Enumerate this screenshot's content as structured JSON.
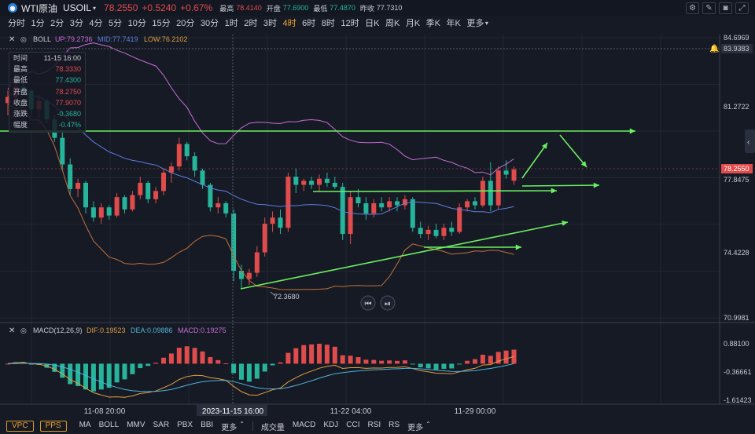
{
  "header": {
    "symbol_name": "WTI原油",
    "ticker": "USOIL",
    "price": "78.2550",
    "change": "+0.5240",
    "change_pct": "+0.67%",
    "stats": [
      {
        "label": "最高",
        "value": "78.4140"
      },
      {
        "label": "开盘",
        "value": "77.6900"
      },
      {
        "label": "最低",
        "value": "77.4870"
      },
      {
        "label": "昨收",
        "value": "77.7310"
      }
    ],
    "tools": [
      "settings-icon",
      "pencil-icon",
      "camera-icon",
      "fullscreen-icon"
    ]
  },
  "intervals": [
    "分时",
    "1分",
    "2分",
    "3分",
    "4分",
    "5分",
    "10分",
    "15分",
    "20分",
    "30分",
    "1时",
    "2时",
    "3时",
    "4时",
    "6时",
    "8时",
    "12时",
    "日K",
    "周K",
    "月K",
    "季K",
    "年K",
    "更多"
  ],
  "active_interval": "4时",
  "boll": {
    "label": "BOLL",
    "up": "UP:79.2736",
    "mid": "MID:77.7419",
    "low": "LOW:76.2102"
  },
  "tooltip": [
    {
      "label": "时间",
      "value": "11-15 16:00",
      "color": "normal"
    },
    {
      "label": "最高",
      "value": "78.3330",
      "color": "red"
    },
    {
      "label": "最低",
      "value": "77.4300",
      "color": "green"
    },
    {
      "label": "开盘",
      "value": "78.2750",
      "color": "red"
    },
    {
      "label": "收盘",
      "value": "77.9070",
      "color": "red"
    },
    {
      "label": "涨跌",
      "value": "-0.3680",
      "color": "green"
    },
    {
      "label": "幅度",
      "value": "-0.47%",
      "color": "green"
    }
  ],
  "price_axis": [
    "84.6969",
    "83.9383",
    "81.2722",
    "78.2550",
    "77.8475",
    "74.4228",
    "70.9981"
  ],
  "min_label": "72.3680",
  "macd": {
    "label": "MACD(12,26,9)",
    "dif": "DIF:0.19523",
    "dea": "DEA:0.09886",
    "macd": "MACD:0.19275"
  },
  "macd_axis": [
    "0.88100",
    "-0.36661",
    "-1.61423"
  ],
  "time_axis": [
    "11-08 20:00",
    "2023-11-15 16:00",
    "11-22 04:00",
    "11-29 00:00"
  ],
  "bottom": {
    "buttons": [
      "VPC",
      "PPS"
    ],
    "main_indicators": [
      "MA",
      "BOLL",
      "MMV",
      "SAR",
      "PBX",
      "BBI",
      "更多"
    ],
    "sub_indicators": [
      "成交量",
      "MACD",
      "KDJ",
      "CCI",
      "RSI",
      "RS",
      "更多"
    ]
  },
  "colors": {
    "up": "#e04c4c",
    "down": "#26b59b",
    "boll_up": "#c86dd7",
    "boll_mid": "#5f7de0",
    "boll_low": "#c1723a",
    "trend_line": "#6bf060",
    "active": "#f0a030",
    "background": "#161a25"
  },
  "candles": [
    [
      81.5,
      82.1,
      80.9,
      81.8
    ],
    [
      81.8,
      82.6,
      81.5,
      82.3
    ],
    [
      82.3,
      82.8,
      81.9,
      82.1
    ],
    [
      82.1,
      82.2,
      80.9,
      81.2
    ],
    [
      81.2,
      81.9,
      80.8,
      81.6
    ],
    [
      81.6,
      81.7,
      80.5,
      80.7
    ],
    [
      80.7,
      80.9,
      79.6,
      79.8
    ],
    [
      79.8,
      80.1,
      78.2,
      78.5
    ],
    [
      78.5,
      78.8,
      77.0,
      77.3
    ],
    [
      77.3,
      77.8,
      76.9,
      77.6
    ],
    [
      77.6,
      77.7,
      76.1,
      76.4
    ],
    [
      76.4,
      76.7,
      75.7,
      75.9
    ],
    [
      75.9,
      76.6,
      75.6,
      76.4
    ],
    [
      76.4,
      76.5,
      75.8,
      76.0
    ],
    [
      76.0,
      77.1,
      75.9,
      76.9
    ],
    [
      76.9,
      77.0,
      76.1,
      76.3
    ],
    [
      76.3,
      77.2,
      76.2,
      77.0
    ],
    [
      77.0,
      77.9,
      76.8,
      77.6
    ],
    [
      77.6,
      77.7,
      76.6,
      76.8
    ],
    [
      76.8,
      77.4,
      76.6,
      77.2
    ],
    [
      77.2,
      78.3,
      77.0,
      78.1
    ],
    [
      78.1,
      78.6,
      77.6,
      78.4
    ],
    [
      78.4,
      79.8,
      78.2,
      79.5
    ],
    [
      79.5,
      79.6,
      78.7,
      78.9
    ],
    [
      78.9,
      79.1,
      77.9,
      78.2
    ],
    [
      78.2,
      78.3,
      77.3,
      77.5
    ],
    [
      77.5,
      77.6,
      76.2,
      76.4
    ],
    [
      76.4,
      76.9,
      76.1,
      76.6
    ],
    [
      76.6,
      76.7,
      75.9,
      76.1
    ],
    [
      76.1,
      76.3,
      72.8,
      73.3
    ],
    [
      73.3,
      73.6,
      72.4,
      72.9
    ],
    [
      72.9,
      73.4,
      72.6,
      73.2
    ],
    [
      73.2,
      74.5,
      73.0,
      74.2
    ],
    [
      74.2,
      75.9,
      74.0,
      75.6
    ],
    [
      75.6,
      76.2,
      75.2,
      75.9
    ],
    [
      75.9,
      76.3,
      75.1,
      75.4
    ],
    [
      75.4,
      78.1,
      75.2,
      77.9
    ],
    [
      77.9,
      78.3,
      77.1,
      77.5
    ],
    [
      77.5,
      77.8,
      77.2,
      77.7
    ],
    [
      77.7,
      77.9,
      77.3,
      77.5
    ],
    [
      77.5,
      78.0,
      77.2,
      77.8
    ],
    [
      77.8,
      78.1,
      77.4,
      77.6
    ],
    [
      77.6,
      77.9,
      77.3,
      77.4
    ],
    [
      77.4,
      77.6,
      74.8,
      75.1
    ],
    [
      75.1,
      77.2,
      74.6,
      76.9
    ],
    [
      76.9,
      77.3,
      76.4,
      76.6
    ],
    [
      76.6,
      76.9,
      75.8,
      76.1
    ],
    [
      76.1,
      76.8,
      75.9,
      76.6
    ],
    [
      76.6,
      76.9,
      76.2,
      76.4
    ],
    [
      76.4,
      76.9,
      76.2,
      76.7
    ],
    [
      76.7,
      76.9,
      76.2,
      76.5
    ],
    [
      76.5,
      77.0,
      76.3,
      76.8
    ],
    [
      76.8,
      76.9,
      75.2,
      75.4
    ],
    [
      75.4,
      75.7,
      74.9,
      75.1
    ],
    [
      75.1,
      75.5,
      74.8,
      75.3
    ],
    [
      75.3,
      75.6,
      74.9,
      75.0
    ],
    [
      75.0,
      75.6,
      74.8,
      75.4
    ],
    [
      75.4,
      75.7,
      75.0,
      75.2
    ],
    [
      75.2,
      76.6,
      75.1,
      76.4
    ],
    [
      76.4,
      76.8,
      76.2,
      76.7
    ],
    [
      76.7,
      76.9,
      76.3,
      76.5
    ],
    [
      76.5,
      77.9,
      76.4,
      77.7
    ],
    [
      77.7,
      78.6,
      76.2,
      76.5
    ],
    [
      76.5,
      78.4,
      76.3,
      78.2
    ],
    [
      78.2,
      78.7,
      77.8,
      78.0
    ],
    [
      77.7,
      78.4,
      77.5,
      78.255
    ]
  ]
}
